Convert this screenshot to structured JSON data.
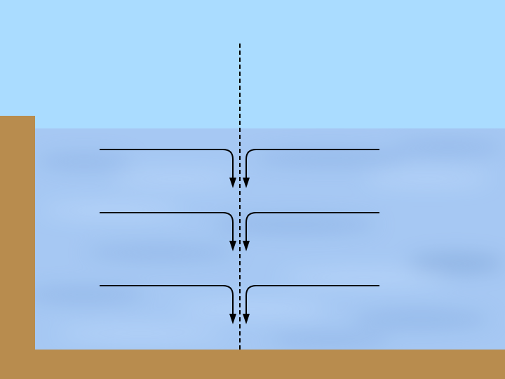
{
  "colors": {
    "sky": "#aadcff",
    "water": "#a6c8f3",
    "water_shade": "#8fb4e6",
    "water_light": "#bcd8fb",
    "ground": "#b88c4e",
    "flow_line": "#000000",
    "axis_line": "#000000"
  },
  "diagram": {
    "description_type": "cross-section of a water body with flow converging toward a vertical dashed centerline",
    "flow_rows": 3,
    "arrows_per_row": 2,
    "arrow_direction": "down"
  }
}
